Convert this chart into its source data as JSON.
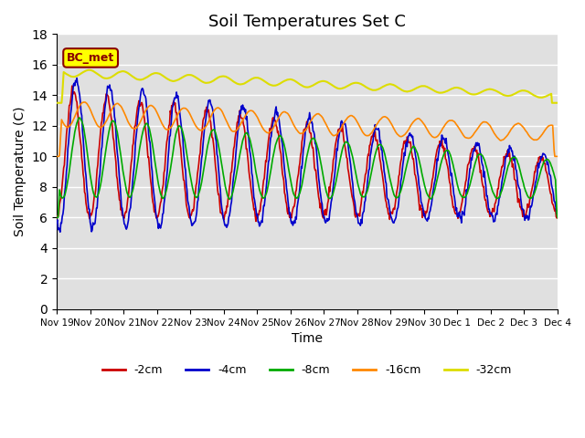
{
  "title": "Soil Temperatures Set C",
  "xlabel": "Time",
  "ylabel": "Soil Temperature (C)",
  "ylim": [
    0,
    18
  ],
  "yticks": [
    0,
    2,
    4,
    6,
    8,
    10,
    12,
    14,
    16,
    18
  ],
  "colors": {
    "-2cm": "#cc0000",
    "-4cm": "#0000cc",
    "-8cm": "#00aa00",
    "-16cm": "#ff8800",
    "-32cm": "#dddd00"
  },
  "label_text": "BC_met",
  "label_bg": "#ffff00",
  "label_border": "#880000",
  "bg_color": "#e0e0e0",
  "legend_entries": [
    "-2cm",
    "-4cm",
    "-8cm",
    "-16cm",
    "-32cm"
  ],
  "x_tick_labels": [
    "Nov 19",
    "Nov 20",
    "Nov 21",
    "Nov 22",
    "Nov 23",
    "Nov 24",
    "Nov 25",
    "Nov 26",
    "Nov 27",
    "Nov 28",
    "Nov 29",
    "Nov 30",
    "Dec 1",
    "Dec 2",
    "Dec 3",
    "Dec 4"
  ],
  "num_points_per_day": 48,
  "num_days": 15
}
